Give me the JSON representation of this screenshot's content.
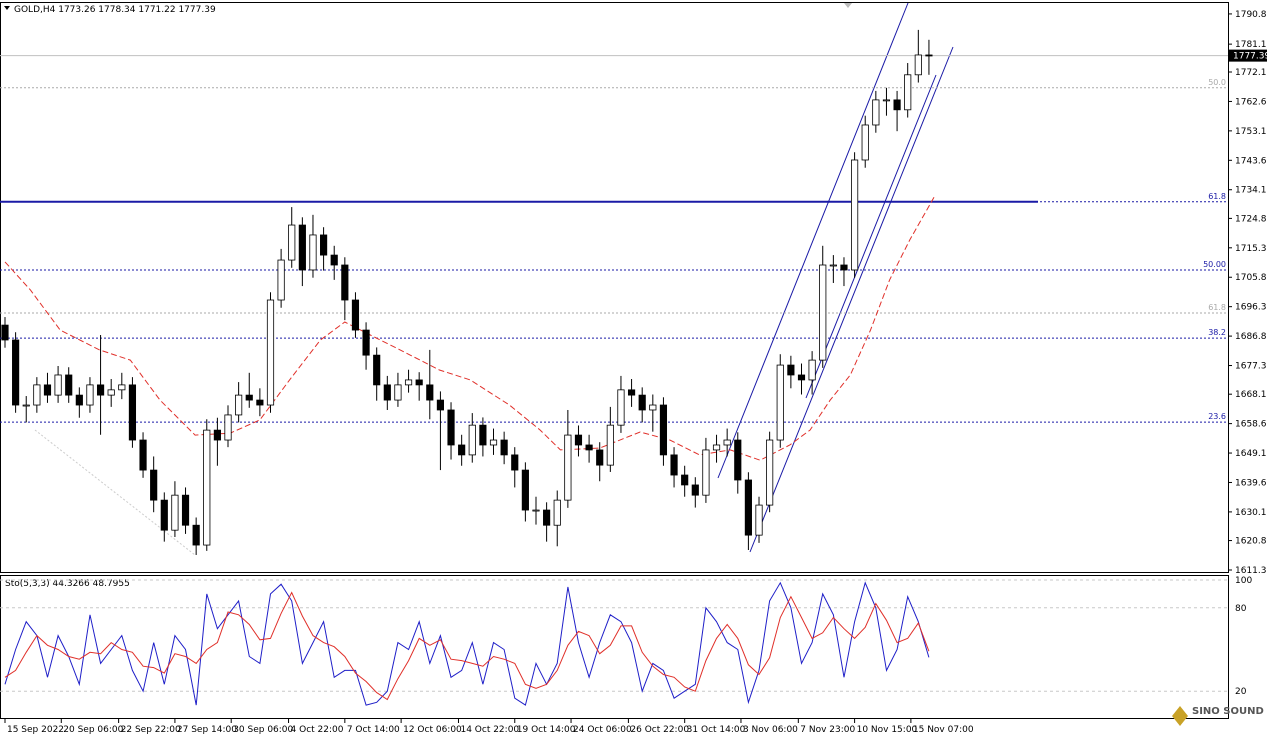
{
  "chart_data": {
    "type": "candlestick",
    "title": "GOLD,H4 1773.26 1778.34 1771.22 1777.39",
    "watermark": "SINO SOUND",
    "xlim": [
      -0.47,
      115.16
    ],
    "ylim": [
      1610.7,
      1794.7
    ],
    "yticks": [
      1790.85,
      {
        "value": 1781.1,
        "label": "1781.10"
      },
      {
        "value": 1772.1,
        "label": "1772.10"
      },
      {
        "value": 1762.6,
        "label": "1762.60"
      },
      {
        "value": 1753.1,
        "label": "1753.10"
      },
      {
        "value": 1743.6,
        "label": "1743.60"
      },
      {
        "value": 1734.1,
        "label": "1734.10"
      },
      1724.85,
      1715.35,
      1705.85,
      1696.35,
      1686.85,
      1677.35,
      {
        "value": 1668.1,
        "label": "1668.10"
      },
      {
        "value": 1658.6,
        "label": "1658.60"
      },
      {
        "value": 1649.1,
        "label": "1649.10"
      },
      {
        "value": 1639.6,
        "label": "1639.60"
      },
      {
        "value": 1630.1,
        "label": "1630.10"
      },
      1620.85,
      1611.35
    ],
    "xticks": [
      {
        "value": 0,
        "label": "15 Sep 2022"
      },
      {
        "value": 5.3,
        "label": "20 Sep 06:00"
      },
      {
        "value": 10.7,
        "label": "22 Sep 22:00"
      },
      {
        "value": 16,
        "label": "27 Sep 14:00"
      },
      {
        "value": 21.3,
        "label": "30 Sep 06:00"
      },
      {
        "value": 26.7,
        "label": "4 Oct 22:00"
      },
      {
        "value": 32,
        "label": "7 Oct 14:00"
      },
      {
        "value": 37.3,
        "label": "12 Oct 06:00"
      },
      {
        "value": 42.7,
        "label": "14 Oct 22:00"
      },
      {
        "value": 48,
        "label": "19 Oct 14:00"
      },
      {
        "value": 53.3,
        "label": "24 Oct 06:00"
      },
      {
        "value": 58.7,
        "label": "26 Oct 22:00"
      },
      {
        "value": 64,
        "label": "31 Oct 14:00"
      },
      {
        "value": 69.3,
        "label": "3 Nov 06:00"
      },
      {
        "value": 74.7,
        "label": "7 Nov 23:00"
      },
      {
        "value": 80,
        "label": "10 Nov 15:00"
      },
      {
        "value": 85.3,
        "label": "15 Nov 07:00"
      }
    ],
    "open": [
      1690.4,
      1685.6,
      1664.6,
      1664.6,
      1671.1,
      1667.8,
      1674.3,
      1667.8,
      1664.6,
      1671.1,
      1667.8,
      1669.5,
      1671.1,
      1653.3,
      1643.6,
      1633.9,
      1624.2,
      1635.5,
      1625.8,
      1619.4,
      1656.5,
      1653.3,
      1661.4,
      1667.8,
      1666.2,
      1664.6,
      1698.5,
      1711.4,
      1722.7,
      1708.2,
      1719.5,
      1713.0,
      1709.8,
      1698.5,
      1688.8,
      1680.7,
      1671.1,
      1666.2,
      1671.1,
      1672.7,
      1671.1,
      1666.2,
      1663.0,
      1651.7,
      1648.5,
      1658.1,
      1651.7,
      1653.3,
      1648.5,
      1643.6,
      1630.7,
      1630.7,
      1625.8,
      1633.9,
      1654.9,
      1651.7,
      1650.1,
      1645.2,
      1658.1,
      1669.5,
      1667.8,
      1663.0,
      1664.6,
      1648.5,
      1642.0,
      1638.8,
      1635.5,
      1650.1,
      1651.7,
      1653.3,
      1640.4,
      1622.6,
      1632.3,
      1653.3,
      1677.5,
      1674.3,
      1672.7,
      1679.1,
      1709.8,
      1709.8,
      1708.2,
      1743.7,
      1755.0,
      1763.1,
      1763.1,
      1759.9,
      1771.2,
      1777.6
    ],
    "high": [
      1693.0,
      1688.1,
      1667.5,
      1673.6,
      1675.0,
      1677.2,
      1676.8,
      1670.3,
      1673.6,
      1687.2,
      1673.0,
      1675.0,
      1673.6,
      1655.8,
      1648.0,
      1636.4,
      1640.0,
      1638.0,
      1628.3,
      1660.0,
      1660.5,
      1664.5,
      1672.0,
      1675.0,
      1670.0,
      1701.0,
      1715.0,
      1728.5,
      1725.2,
      1726.0,
      1722.0,
      1716.0,
      1712.3,
      1701.0,
      1691.3,
      1683.2,
      1674.0,
      1675.0,
      1676.0,
      1675.2,
      1682.4,
      1669.0,
      1665.5,
      1655.0,
      1662.0,
      1660.6,
      1657.0,
      1656.0,
      1651.0,
      1646.1,
      1635.0,
      1633.2,
      1637.0,
      1663.0,
      1658.0,
      1655.0,
      1652.6,
      1664.0,
      1674.0,
      1673.0,
      1670.3,
      1668.0,
      1667.1,
      1651.0,
      1645.0,
      1641.3,
      1654.0,
      1655.0,
      1657.0,
      1655.8,
      1642.9,
      1635.0,
      1656.0,
      1681.0,
      1680.5,
      1678.0,
      1682.0,
      1716.0,
      1713.0,
      1712.3,
      1746.2,
      1758.0,
      1766.0,
      1767.0,
      1766.0,
      1775.0,
      1785.7,
      1782.5
    ],
    "low": [
      1683.1,
      1662.1,
      1659.0,
      1662.1,
      1665.3,
      1665.3,
      1665.3,
      1660.5,
      1662.1,
      1655.0,
      1664.0,
      1666.5,
      1650.8,
      1641.1,
      1630.0,
      1620.5,
      1622.0,
      1623.0,
      1616.2,
      1617.5,
      1645.0,
      1651.0,
      1659.0,
      1663.7,
      1661.0,
      1662.1,
      1696.0,
      1708.9,
      1703.0,
      1705.7,
      1708.0,
      1705.0,
      1692.0,
      1686.3,
      1676.0,
      1666.0,
      1663.0,
      1664.0,
      1668.6,
      1666.0,
      1660.0,
      1643.6,
      1647.0,
      1645.0,
      1646.0,
      1648.0,
      1648.5,
      1645.5,
      1638.0,
      1627.0,
      1626.0,
      1620.5,
      1619.0,
      1631.4,
      1648.0,
      1646.0,
      1640.0,
      1643.0,
      1655.6,
      1664.0,
      1659.0,
      1656.0,
      1645.0,
      1638.0,
      1635.0,
      1631.5,
      1633.0,
      1646.0,
      1648.0,
      1636.0,
      1617.8,
      1620.1,
      1630.0,
      1650.8,
      1670.0,
      1668.0,
      1668.0,
      1676.6,
      1704.0,
      1703.0,
      1705.7,
      1741.2,
      1752.5,
      1758.0,
      1753.0,
      1757.4,
      1768.7,
      1771.2
    ],
    "close": [
      1685.6,
      1664.6,
      1664.6,
      1671.1,
      1667.8,
      1674.3,
      1667.8,
      1664.6,
      1671.1,
      1667.8,
      1669.5,
      1671.1,
      1653.3,
      1643.6,
      1633.9,
      1624.2,
      1635.5,
      1625.8,
      1619.4,
      1656.5,
      1653.3,
      1661.4,
      1667.8,
      1666.2,
      1664.6,
      1698.5,
      1711.4,
      1722.7,
      1708.2,
      1719.5,
      1713.0,
      1709.8,
      1698.5,
      1688.8,
      1680.7,
      1671.1,
      1666.2,
      1671.1,
      1672.7,
      1671.1,
      1666.2,
      1663.0,
      1651.7,
      1648.5,
      1658.1,
      1651.7,
      1653.3,
      1648.5,
      1643.6,
      1630.7,
      1630.7,
      1625.8,
      1633.9,
      1654.9,
      1651.7,
      1650.1,
      1645.2,
      1658.1,
      1669.5,
      1667.8,
      1663.0,
      1664.6,
      1648.5,
      1642.0,
      1638.8,
      1635.5,
      1650.1,
      1651.7,
      1653.3,
      1640.4,
      1622.6,
      1632.3,
      1653.3,
      1677.5,
      1674.3,
      1672.7,
      1679.1,
      1709.8,
      1709.8,
      1708.2,
      1743.7,
      1755.0,
      1763.1,
      1763.1,
      1759.9,
      1771.2,
      1777.6,
      1777.39
    ],
    "up_color": "#ffffff",
    "down_color": "#000000",
    "ma": {
      "color": "#e0302a",
      "x": [
        0,
        2.4,
        5.2,
        8.9,
        11.8,
        14.6,
        17.9,
        21.2,
        24,
        26.8,
        29.7,
        32,
        34.4,
        37.2,
        40.9,
        43.8,
        47.5,
        50.4,
        52.3,
        56,
        59.8,
        62.6,
        65.4,
        68.3,
        71.1,
        73.9,
        75.8,
        77.7,
        79.6,
        81.5,
        83.3,
        85.2,
        87.6
      ],
      "values": [
        1710.8,
        1701.7,
        1688.8,
        1682.4,
        1679.1,
        1666.2,
        1654.9,
        1655.5,
        1659.8,
        1672.7,
        1685.6,
        1691.4,
        1687.2,
        1682.4,
        1675.9,
        1672.7,
        1664.6,
        1656.5,
        1650.1,
        1650.7,
        1655.9,
        1653.3,
        1648.5,
        1650.1,
        1646.8,
        1651.7,
        1656.5,
        1666.2,
        1674.3,
        1688.8,
        1705.0,
        1717.9,
        1732.4
      ]
    },
    "last_price": 1777.39,
    "levels": [
      {
        "label": "50.0",
        "value": 1767.0,
        "color": "#aaaaaa"
      },
      {
        "label": "61.8",
        "value": 1730.2,
        "color": "#1a1aa6",
        "width": 2
      },
      {
        "label": "50.00",
        "value": 1708.2,
        "color": "#1a1aa6"
      },
      {
        "label": "61.8",
        "value": 1694.3,
        "color": "#aaaaaa"
      },
      {
        "label": "38.2",
        "value": 1686.2,
        "color": "#1a1aa6"
      },
      {
        "label": "23.6",
        "value": 1659.1,
        "color": "#1a1aa6"
      }
    ],
    "stochastic": {
      "title": "Sto(5,3,3) 44.3266 48.7955",
      "ylim": [
        0,
        103.6
      ],
      "yticks": [
        100,
        80,
        20
      ],
      "series": [
        {
          "color": "#1f1fc8",
          "values": [
            25,
            50,
            70,
            60,
            30,
            60,
            45,
            25,
            75,
            40,
            50,
            60,
            35,
            20,
            55,
            25,
            60,
            50,
            10,
            90,
            65,
            75,
            85,
            45,
            40,
            90,
            97,
            85,
            40,
            55,
            70,
            30,
            35,
            35,
            10,
            12,
            20,
            55,
            50,
            70,
            40,
            60,
            30,
            35,
            55,
            25,
            55,
            50,
            15,
            10,
            40,
            25,
            40,
            95,
            55,
            30,
            55,
            75,
            70,
            55,
            20,
            40,
            35,
            15,
            20,
            25,
            80,
            70,
            55,
            50,
            12,
            35,
            85,
            98,
            80,
            40,
            55,
            90,
            75,
            30,
            70,
            98,
            80,
            35,
            50,
            88,
            70,
            44.3
          ]
        },
        {
          "color": "#e0302a",
          "values": [
            30,
            35,
            48,
            60,
            53,
            50,
            45,
            43,
            48,
            47,
            55,
            50,
            48,
            38,
            37,
            33,
            47,
            45,
            40,
            50,
            55,
            77,
            75,
            68,
            57,
            58,
            76,
            91,
            74,
            60,
            55,
            52,
            45,
            33,
            27,
            19,
            14,
            29,
            42,
            58,
            53,
            57,
            43,
            42,
            40,
            38,
            45,
            43,
            40,
            25,
            22,
            25,
            35,
            53,
            63,
            60,
            47,
            53,
            67,
            67,
            48,
            38,
            32,
            30,
            23,
            20,
            42,
            58,
            68,
            58,
            39,
            32,
            44,
            73,
            88,
            73,
            58,
            62,
            73,
            65,
            58,
            66,
            83,
            71,
            55,
            58,
            69,
            48.8
          ]
        }
      ]
    }
  }
}
